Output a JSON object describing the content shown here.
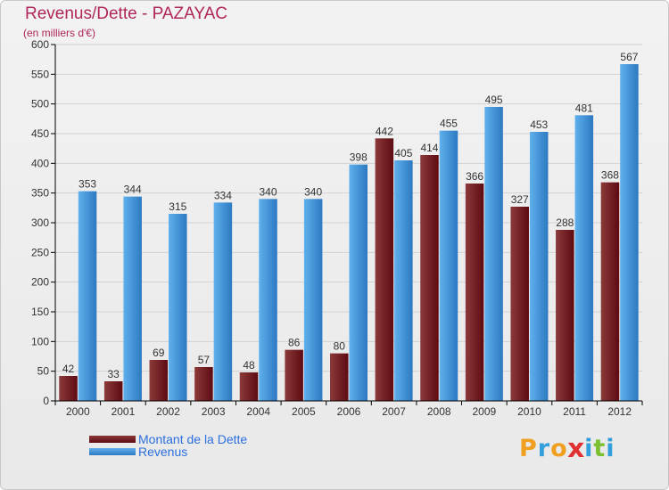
{
  "colors": {
    "title": "#b0265a",
    "debt_light": "#8b3a3a",
    "debt_dark": "#5e0a12",
    "revenue_light": "#5fb0ec",
    "revenue_dark": "#2d79c2",
    "legend_text": "#2c6fe0",
    "axis": "#000000",
    "grid": "#d2d2d2"
  },
  "logo": {
    "letters": [
      "P",
      "r",
      "o",
      "x",
      "i",
      "t",
      "i"
    ],
    "letter_colors": [
      "#f0a020",
      "#33a0dc",
      "#f0a020",
      "#e03030",
      "#33a0dc",
      "#7cbf30",
      "#33a0dc"
    ]
  },
  "chart_data": {
    "type": "bar",
    "title": "Revenus/Dette - PAZAYAC",
    "subtitle": "(en milliers d'€)",
    "xlabel": "",
    "ylabel": "",
    "ylim": [
      0,
      600
    ],
    "yticks": [
      0,
      50,
      100,
      150,
      200,
      250,
      300,
      350,
      400,
      450,
      500,
      550,
      600
    ],
    "grid": true,
    "legend_position": "bottom-left",
    "categories": [
      "2000",
      "2001",
      "2002",
      "2003",
      "2004",
      "2005",
      "2006",
      "2007",
      "2008",
      "2009",
      "2010",
      "2011",
      "2012"
    ],
    "series": [
      {
        "name": "Montant de la Dette",
        "values": [
          42,
          33,
          69,
          57,
          48,
          86,
          80,
          442,
          414,
          366,
          327,
          288,
          368
        ]
      },
      {
        "name": "Revenus",
        "values": [
          353,
          344,
          315,
          334,
          340,
          340,
          398,
          405,
          455,
          495,
          453,
          481,
          567
        ]
      }
    ]
  }
}
